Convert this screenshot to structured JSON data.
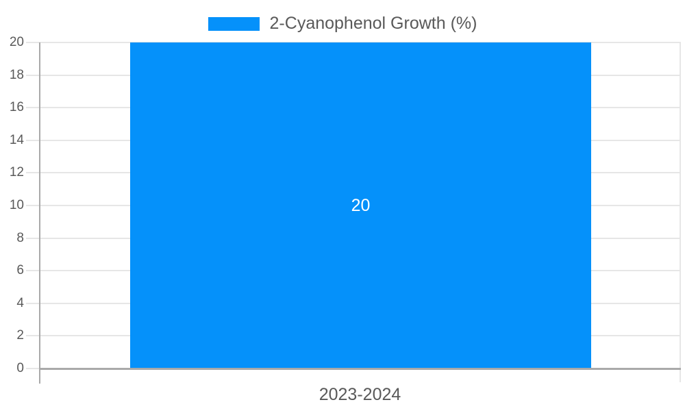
{
  "legend": {
    "label": "2-Cyanophenol Growth (%)"
  },
  "chart_data": {
    "type": "bar",
    "title": "",
    "categories": [
      "2023-2024"
    ],
    "series": [
      {
        "name": "2-Cyanophenol Growth (%)",
        "values": [
          20
        ]
      }
    ],
    "data_labels": [
      "20"
    ],
    "xlabel": "",
    "ylabel": "",
    "ylim": [
      0,
      20
    ],
    "ytick_step": 2,
    "yticks": [
      0,
      2,
      4,
      6,
      8,
      10,
      12,
      14,
      16,
      18,
      20
    ],
    "grid": true,
    "legend_position": "top",
    "colors": {
      "bar": "#0591fa",
      "grid_line": "#e6e6e6",
      "axis_line": "#a9a9a9",
      "axis_text": "#595959",
      "legend_text": "#595959",
      "data_label_text": "#ffffff",
      "background": "#ffffff"
    }
  }
}
